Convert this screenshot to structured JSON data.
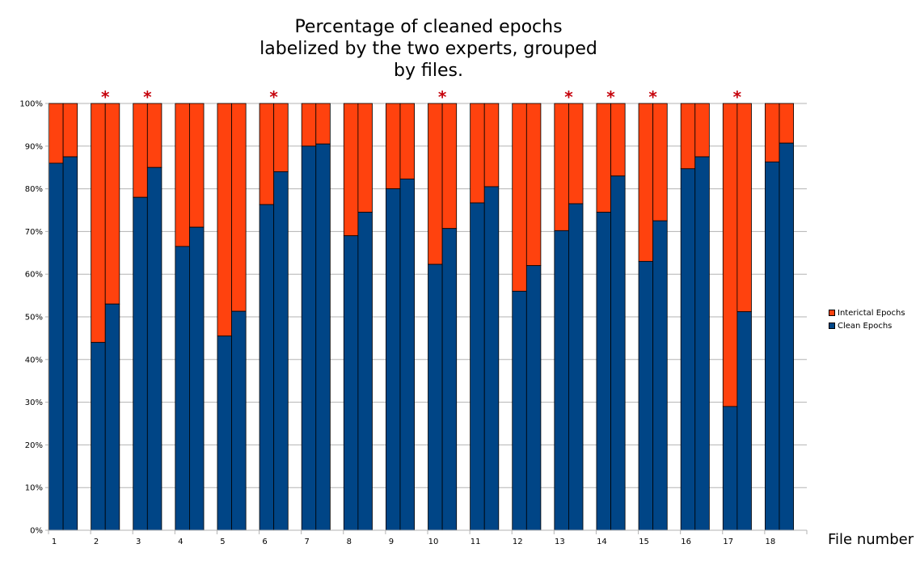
{
  "chart_data": {
    "type": "bar",
    "stacked": true,
    "normalized": true,
    "title_lines": [
      "Percentage of cleaned epochs",
      "labelized by the two experts, grouped",
      "by files."
    ],
    "xlabel": "File number",
    "ylabel": "",
    "ylim": [
      0,
      100
    ],
    "yticks": [
      "0%",
      "10%",
      "20%",
      "30%",
      "40%",
      "50%",
      "60%",
      "70%",
      "80%",
      "90%",
      "100%"
    ],
    "categories": [
      "1",
      "2",
      "3",
      "4",
      "5",
      "6",
      "7",
      "8",
      "9",
      "10",
      "11",
      "12",
      "13",
      "14",
      "15",
      "16",
      "17",
      "18"
    ],
    "bars_per_category": 2,
    "series": [
      {
        "name": "Clean Epochs",
        "color": "#004586",
        "values": [
          [
            86,
            87.5
          ],
          [
            44,
            53
          ],
          [
            78,
            85
          ],
          [
            66.5,
            71
          ],
          [
            45.5,
            51.3
          ],
          [
            76.3,
            84
          ],
          [
            90,
            90.5
          ],
          [
            69,
            74.5
          ],
          [
            80,
            82.3
          ],
          [
            62.3,
            70.7
          ],
          [
            76.7,
            80.5
          ],
          [
            56,
            62
          ],
          [
            70.2,
            76.5
          ],
          [
            74.5,
            83
          ],
          [
            63,
            72.5
          ],
          [
            84.7,
            87.5
          ],
          [
            29,
            51.2
          ],
          [
            86.3,
            90.7
          ]
        ]
      },
      {
        "name": "Interictal Epochs",
        "color": "#ff420e",
        "values": [
          [
            14,
            12.5
          ],
          [
            56,
            47
          ],
          [
            22,
            15
          ],
          [
            33.5,
            29
          ],
          [
            54.5,
            48.7
          ],
          [
            23.7,
            16
          ],
          [
            10,
            9.5
          ],
          [
            31,
            25.5
          ],
          [
            20,
            17.7
          ],
          [
            37.7,
            29.3
          ],
          [
            23.3,
            19.5
          ],
          [
            44,
            38
          ],
          [
            29.8,
            23.5
          ],
          [
            25.5,
            17
          ],
          [
            37,
            27.5
          ],
          [
            15.3,
            12.5
          ],
          [
            71,
            48.8
          ],
          [
            13.7,
            9.3
          ]
        ]
      }
    ],
    "annotations": {
      "marker": "*",
      "color": "#c5000b",
      "categories": [
        "2",
        "3",
        "6",
        "10",
        "13",
        "14",
        "15",
        "17"
      ]
    },
    "legend": {
      "placement": "right",
      "entries": [
        "Interictal Epochs",
        "Clean Epochs"
      ]
    },
    "grid": true
  }
}
